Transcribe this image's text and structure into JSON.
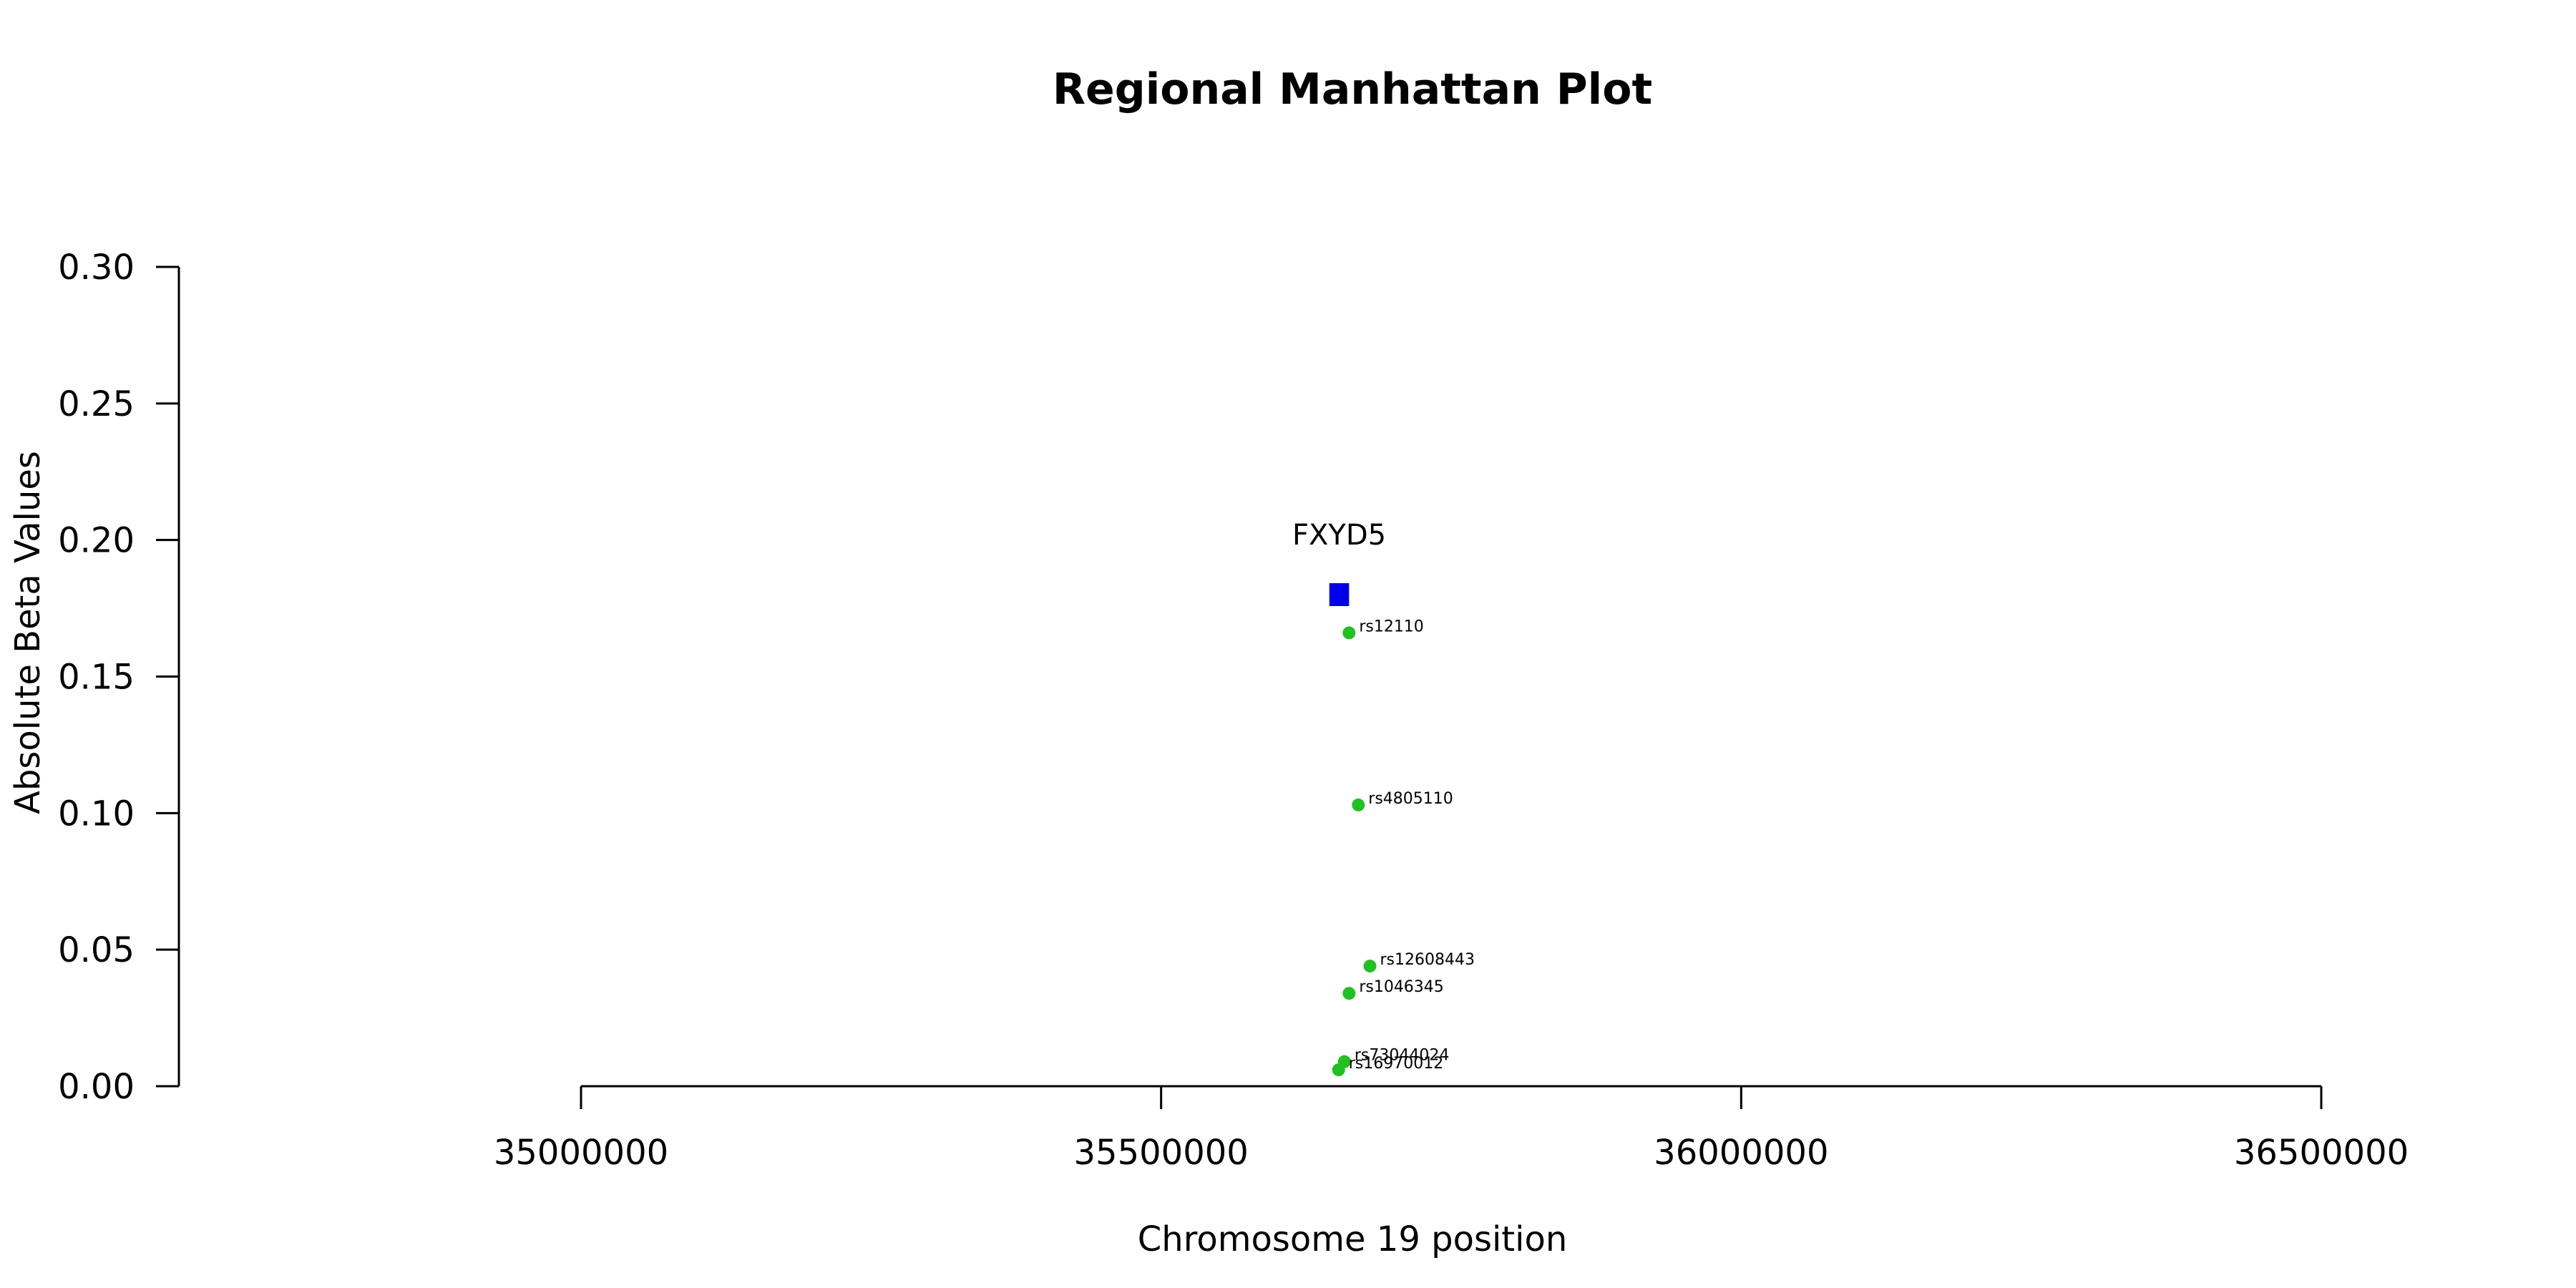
{
  "chart_data": {
    "type": "scatter",
    "title": "Regional Manhattan Plot",
    "xlabel": "Chromosome 19 position",
    "ylabel": "Absolute Beta Values",
    "xlim": [
      35000000,
      36500000
    ],
    "ylim": [
      0,
      0.3
    ],
    "x_ticks": [
      35000000,
      35500000,
      36000000,
      36500000
    ],
    "y_ticks": [
      "0.00",
      "0.05",
      "0.10",
      "0.15",
      "0.20",
      "0.25",
      "0.30"
    ],
    "point_color": "#22c022",
    "gene_color": "#0000ee",
    "genes": [
      {
        "name": "FXYD5",
        "start": 35645000,
        "end": 35662000,
        "y": 0.18
      }
    ],
    "series": [
      {
        "points": [
          {
            "label": "rs12110",
            "x": 35662000,
            "y": 0.166
          },
          {
            "label": "rs4805110",
            "x": 35670000,
            "y": 0.103
          },
          {
            "label": "rs12608443",
            "x": 35680000,
            "y": 0.044
          },
          {
            "label": "rs1046345",
            "x": 35662000,
            "y": 0.034
          },
          {
            "label": "rs73044024",
            "x": 35658000,
            "y": 0.009
          },
          {
            "label": "rs16970012",
            "x": 35653000,
            "y": 0.006
          }
        ]
      }
    ]
  }
}
